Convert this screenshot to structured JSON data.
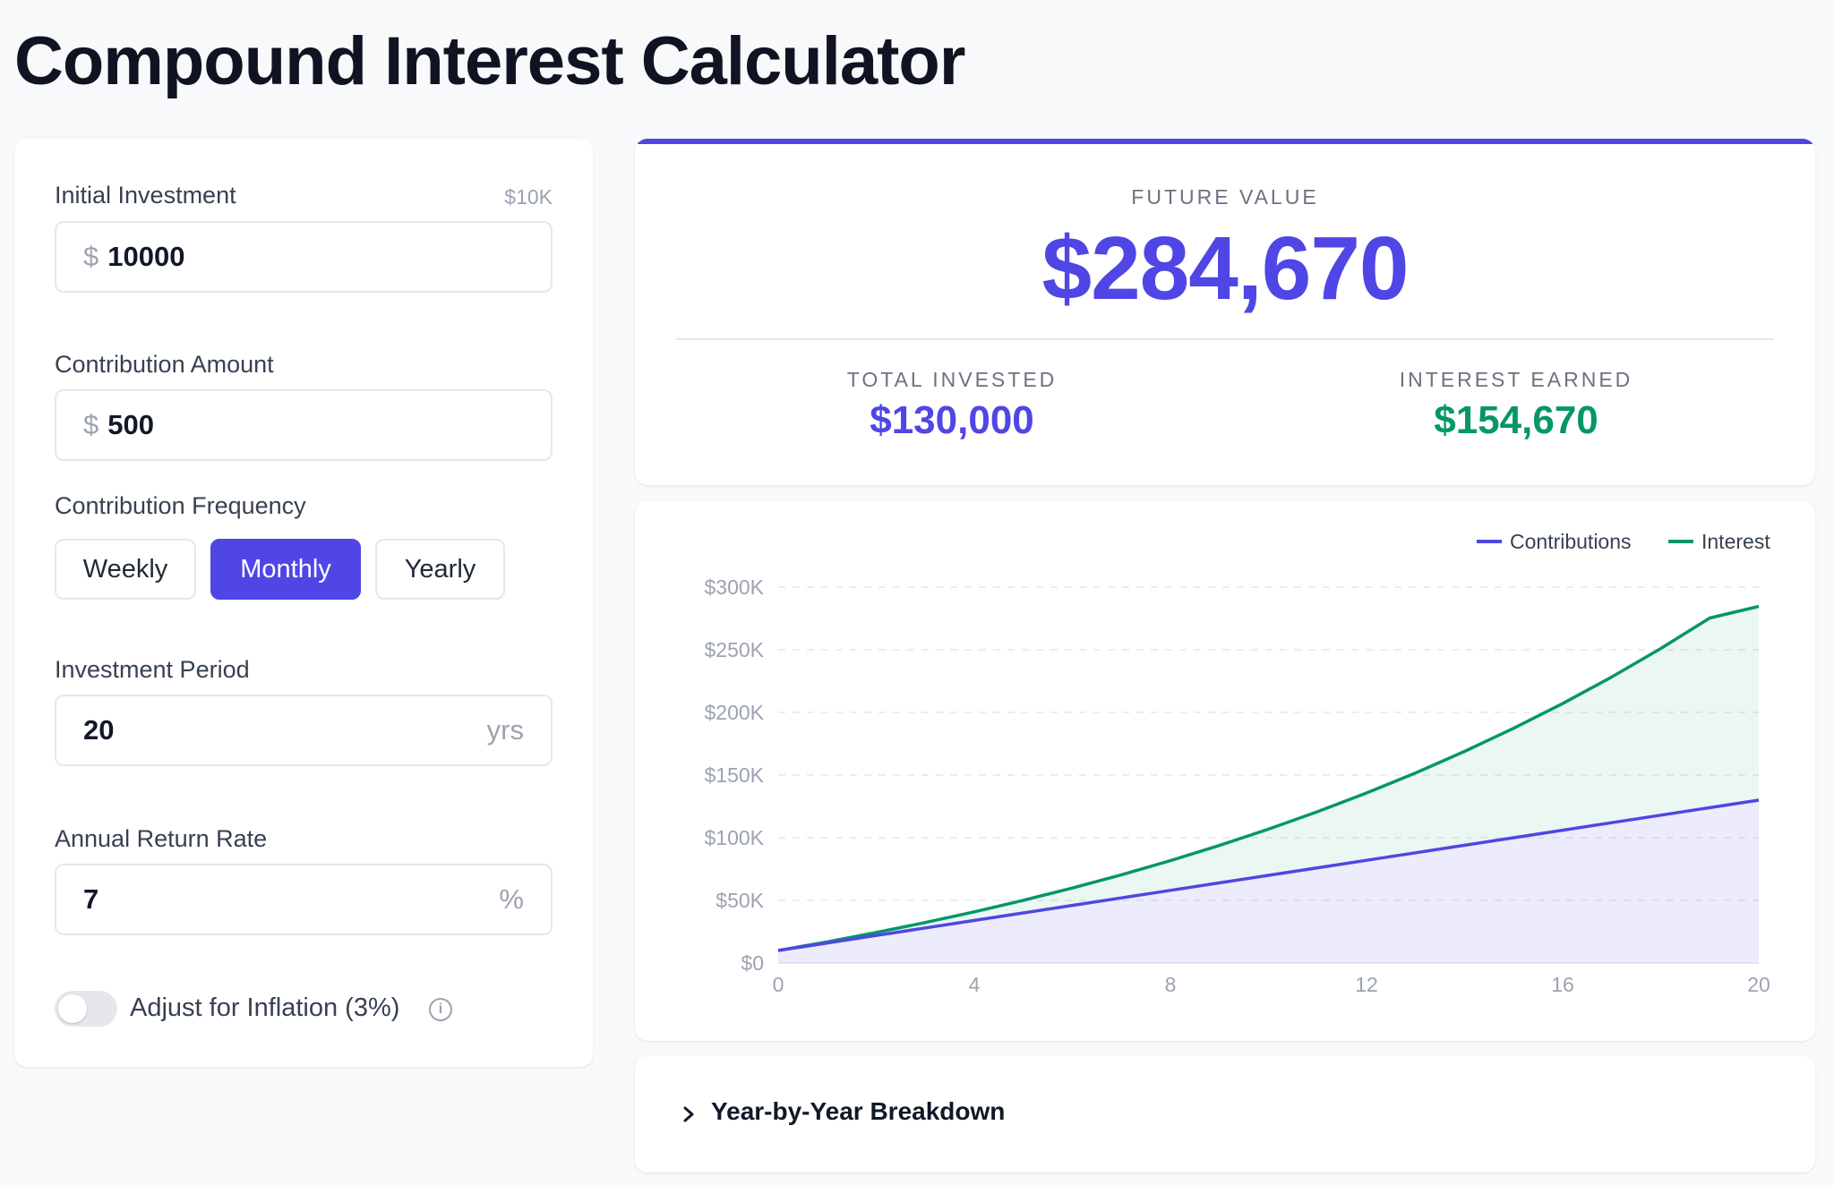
{
  "page": {
    "title": "Compound Interest Calculator"
  },
  "form": {
    "initial_investment": {
      "label": "Initial Investment",
      "hint": "$10K",
      "prefix": "$",
      "value": "10000"
    },
    "contribution_amount": {
      "label": "Contribution Amount",
      "prefix": "$",
      "value": "500"
    },
    "contribution_frequency": {
      "label": "Contribution Frequency",
      "options": [
        "Weekly",
        "Monthly",
        "Yearly"
      ],
      "selected": "Monthly"
    },
    "investment_period": {
      "label": "Investment Period",
      "value": "20",
      "suffix": "yrs"
    },
    "annual_return_rate": {
      "label": "Annual Return Rate",
      "value": "7",
      "suffix": "%"
    },
    "inflation": {
      "label": "Adjust for Inflation (3%)",
      "enabled": false,
      "info_icon": "info-icon"
    }
  },
  "summary": {
    "future_value_label": "FUTURE VALUE",
    "future_value": "$284,670",
    "total_invested_label": "TOTAL INVESTED",
    "total_invested": "$130,000",
    "interest_earned_label": "INTEREST EARNED",
    "interest_earned": "$154,670"
  },
  "breakdown": {
    "title": "Year-by-Year Breakdown",
    "icon": "chevron-right-icon"
  },
  "colors": {
    "accent": "#4f46e5",
    "interest": "#059669",
    "interest_text": "#059669"
  },
  "chart_data": {
    "type": "area",
    "x": [
      0,
      1,
      2,
      3,
      4,
      5,
      6,
      7,
      8,
      9,
      10,
      11,
      12,
      13,
      14,
      15,
      16,
      17,
      18,
      19,
      20
    ],
    "series": [
      {
        "name": "Contributions",
        "color": "#4f46e5",
        "values": [
          10000,
          16000,
          22000,
          28000,
          34000,
          40000,
          46000,
          52000,
          58000,
          64000,
          70000,
          76000,
          82000,
          88000,
          94000,
          100000,
          106000,
          112000,
          118000,
          124000,
          130000
        ]
      },
      {
        "name": "Interest",
        "color": "#059669",
        "values": [
          10000,
          16931,
          24367,
          32340,
          40890,
          50058,
          59888,
          70429,
          81732,
          93852,
          106847,
          120782,
          135724,
          151746,
          168926,
          187347,
          207100,
          228280,
          250991,
          275343,
          284670
        ]
      }
    ],
    "xticks": [
      "0",
      "4",
      "8",
      "12",
      "16",
      "20"
    ],
    "xtick_values": [
      0,
      4,
      8,
      12,
      16,
      20
    ],
    "yticks": [
      "$0",
      "$50K",
      "$100K",
      "$150K",
      "$200K",
      "$250K",
      "$300K"
    ],
    "ytick_values": [
      0,
      50000,
      100000,
      150000,
      200000,
      250000,
      300000
    ],
    "xlim": [
      0,
      20
    ],
    "ylim": [
      0,
      300000
    ],
    "grid": true,
    "legend_position": "top-right"
  }
}
